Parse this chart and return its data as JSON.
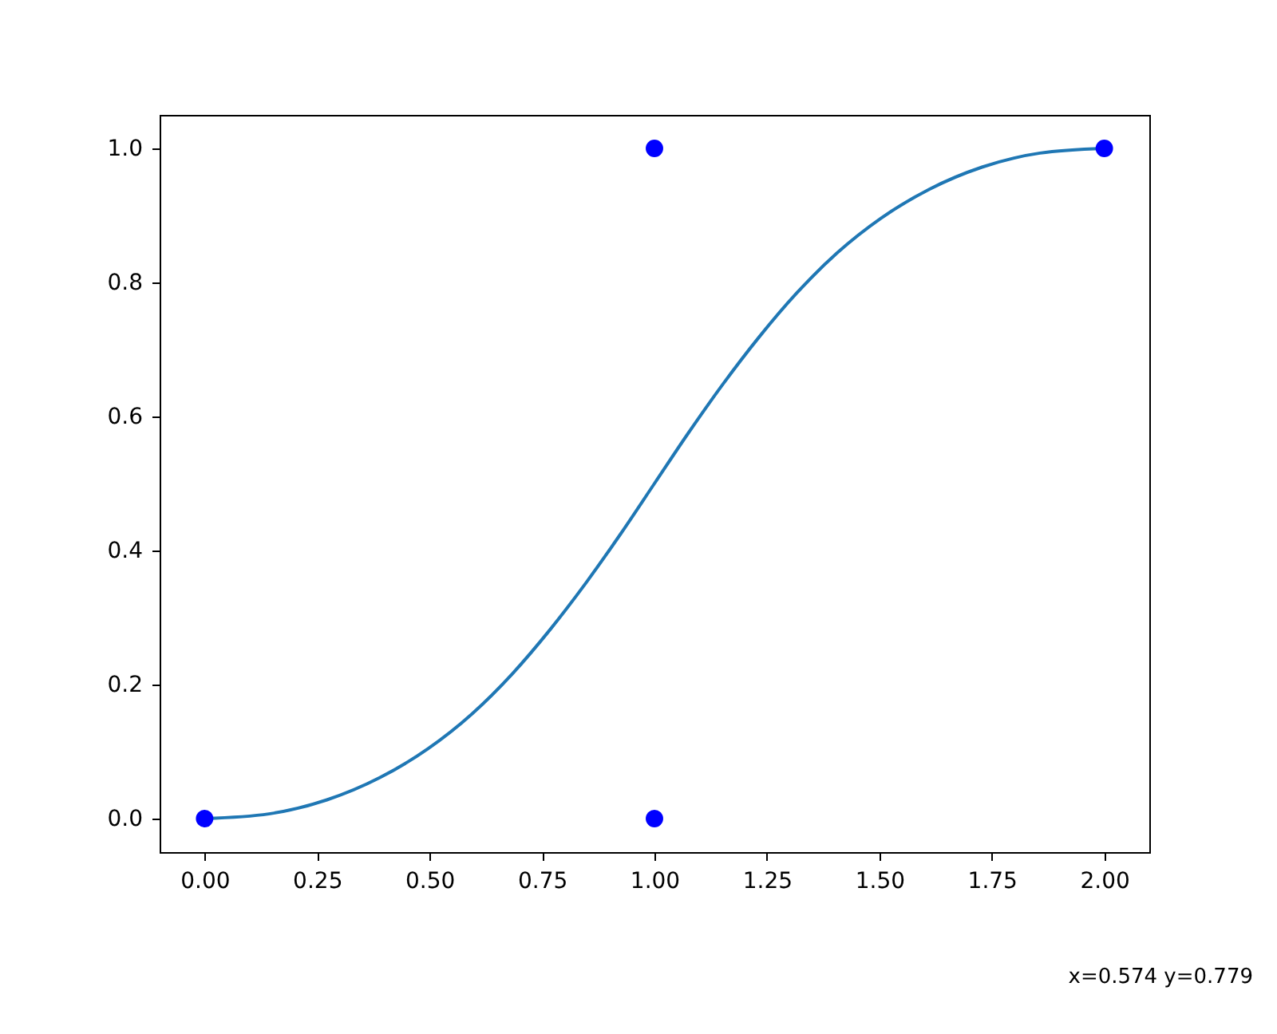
{
  "chart_data": {
    "type": "line",
    "xlim": [
      -0.1,
      2.1
    ],
    "ylim": [
      -0.05,
      1.05
    ],
    "xticks": [
      {
        "value": 0,
        "label": "0.00"
      },
      0.25,
      {
        "value": 0.5,
        "label": "0.50"
      },
      0.75,
      {
        "value": 1,
        "label": "1.00"
      },
      1.25,
      {
        "value": 1.5,
        "label": "1.50"
      },
      1.75,
      {
        "value": 2,
        "label": "2.00"
      }
    ],
    "yticks": [
      {
        "value": 0,
        "label": "0.0"
      },
      0.2,
      0.4,
      0.6,
      0.8,
      {
        "value": 1,
        "label": "1.0"
      }
    ],
    "series": [
      {
        "color": "#1f77b4",
        "marker": "none",
        "x": [
          0,
          0.143,
          0.272,
          0.389,
          0.496,
          0.594,
          0.684,
          0.768,
          0.848,
          0.925,
          1.0,
          1.075,
          1.152,
          1.232,
          1.316,
          1.406,
          1.504,
          1.611,
          1.728,
          1.857,
          2.0
        ],
        "values": [
          0,
          0.007,
          0.028,
          0.061,
          0.104,
          0.156,
          0.216,
          0.282,
          0.352,
          0.425,
          0.5,
          0.575,
          0.648,
          0.718,
          0.784,
          0.844,
          0.896,
          0.939,
          0.972,
          0.993,
          1.0
        ]
      },
      {
        "type": "scatter",
        "color": "#0000ff",
        "marker": "circle",
        "x": [
          0,
          1,
          1,
          2
        ],
        "values": [
          0,
          1,
          0,
          1
        ]
      }
    ],
    "annotations": [
      "x=0.574 y=0.779"
    ]
  }
}
